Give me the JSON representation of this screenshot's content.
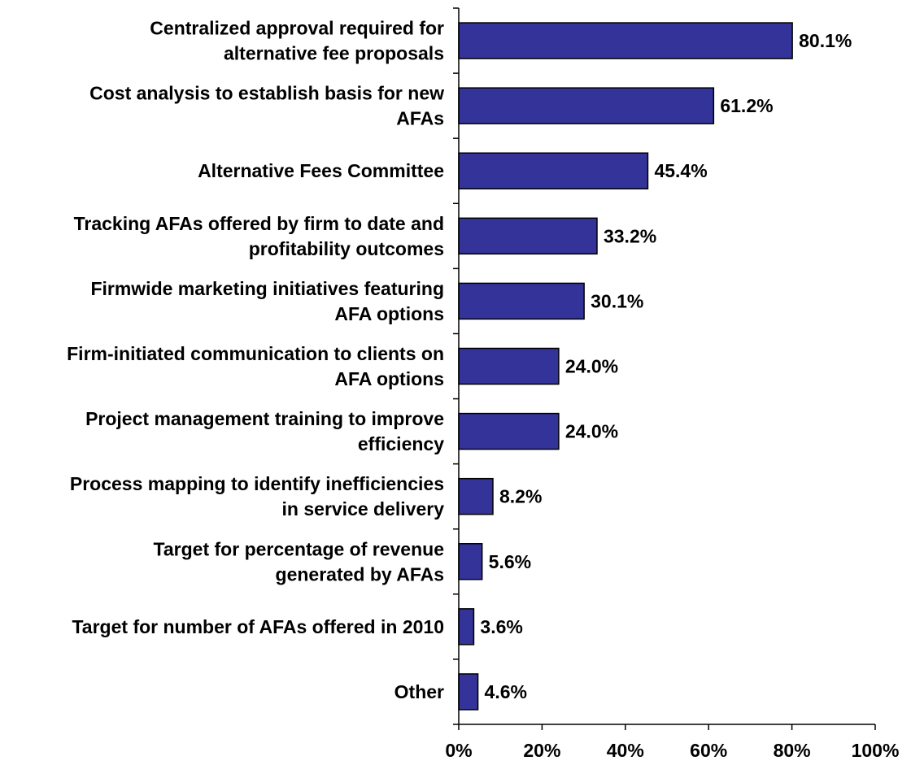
{
  "chart_data": {
    "type": "bar",
    "orientation": "horizontal",
    "categories": [
      [
        "Centralized approval required for",
        "alternative fee proposals"
      ],
      [
        "Cost analysis to establish basis for new",
        "AFAs"
      ],
      [
        "Alternative Fees Committee"
      ],
      [
        "Tracking AFAs offered by firm to date and",
        "profitability outcomes"
      ],
      [
        "Firmwide marketing initiatives featuring",
        "AFA options"
      ],
      [
        "Firm-initiated communication to clients on",
        "AFA options"
      ],
      [
        "Project management training to improve",
        "efficiency"
      ],
      [
        "Process mapping to identify inefficiencies",
        "in service delivery"
      ],
      [
        "Target for percentage of revenue",
        "generated by AFAs"
      ],
      [
        "Target for number of AFAs offered in 2010"
      ],
      [
        "Other"
      ]
    ],
    "values": [
      80.1,
      61.2,
      45.4,
      33.2,
      30.1,
      24.0,
      24.0,
      8.2,
      5.6,
      3.6,
      4.6
    ],
    "value_labels": [
      "80.1%",
      "61.2%",
      "45.4%",
      "33.2%",
      "30.1%",
      "24.0%",
      "24.0%",
      "8.2%",
      "5.6%",
      "3.6%",
      "4.6%"
    ],
    "xlim": [
      0,
      100
    ],
    "x_ticks": [
      0,
      20,
      40,
      60,
      80,
      100
    ],
    "x_tick_labels": [
      "0%",
      "20%",
      "40%",
      "60%",
      "80%",
      "100%"
    ],
    "title": "",
    "xlabel": "",
    "ylabel": "",
    "grid": false,
    "legend": "none",
    "bar_color": "#333399",
    "edge_color": "#000000"
  }
}
